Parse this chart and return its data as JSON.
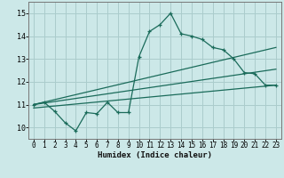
{
  "xlabel": "Humidex (Indice chaleur)",
  "xlim": [
    -0.5,
    23.5
  ],
  "ylim": [
    9.5,
    15.5
  ],
  "xticks": [
    0,
    1,
    2,
    3,
    4,
    5,
    6,
    7,
    8,
    9,
    10,
    11,
    12,
    13,
    14,
    15,
    16,
    17,
    18,
    19,
    20,
    21,
    22,
    23
  ],
  "yticks": [
    10,
    11,
    12,
    13,
    14,
    15
  ],
  "bg_color": "#cce8e8",
  "grid_color": "#aacccc",
  "line_color": "#1a6b5a",
  "main_line": {
    "x": [
      0,
      1,
      2,
      3,
      4,
      5,
      6,
      7,
      8,
      9,
      10,
      11,
      12,
      13,
      14,
      15,
      16,
      17,
      18,
      19,
      20,
      21,
      22,
      23
    ],
    "y": [
      11.0,
      11.1,
      10.7,
      10.2,
      9.85,
      10.65,
      10.6,
      11.1,
      10.65,
      10.65,
      13.1,
      14.2,
      14.5,
      15.0,
      14.1,
      14.0,
      13.85,
      13.5,
      13.4,
      13.0,
      12.4,
      12.35,
      11.85,
      11.85
    ]
  },
  "line_upper": {
    "x": [
      0,
      23
    ],
    "y": [
      11.0,
      13.5
    ]
  },
  "line_mid": {
    "x": [
      0,
      23
    ],
    "y": [
      11.0,
      12.55
    ]
  },
  "line_lower": {
    "x": [
      0,
      23
    ],
    "y": [
      10.85,
      11.85
    ]
  }
}
